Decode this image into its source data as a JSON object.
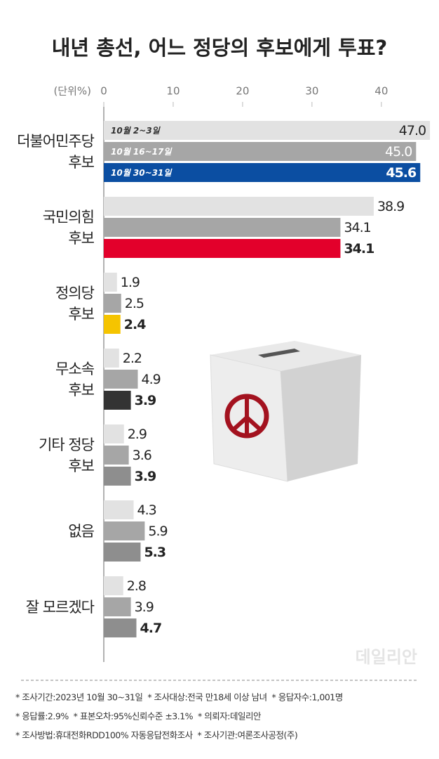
{
  "chart_data": {
    "type": "bar",
    "orientation": "horizontal",
    "title": "내년 총선, 어느 정당의 후보에게 투표?",
    "unit_label": "(단위%)",
    "categories": [
      "더불어민주당\n후보",
      "국민의힘\n후보",
      "정의당\n후보",
      "무소속\n후보",
      "기타 정당\n후보",
      "없음",
      "잘 모르겠다"
    ],
    "series": [
      {
        "name": "10월 2~3일",
        "color": "#e2e2e2",
        "values": [
          47.0,
          38.9,
          1.9,
          2.2,
          2.9,
          4.3,
          2.8
        ],
        "value_labels": [
          "47.0",
          "38.9",
          "1.9",
          "2.2",
          "2.9",
          "4.3",
          "2.8"
        ]
      },
      {
        "name": "10월 16~17일",
        "color": "#a6a6a6",
        "values": [
          45.0,
          34.1,
          2.5,
          4.9,
          3.6,
          5.9,
          3.9
        ],
        "value_labels": [
          "45.0",
          "34.1",
          "2.5",
          "4.9",
          "3.6",
          "5.9",
          "3.9"
        ]
      },
      {
        "name": "10월 30~31일",
        "colors": [
          "#0b4ea2",
          "#e3002b",
          "#f5c400",
          "#333333",
          "#8e8e8e",
          "#8e8e8e",
          "#8e8e8e"
        ],
        "values": [
          45.6,
          34.1,
          2.4,
          3.9,
          3.9,
          5.3,
          4.7
        ],
        "value_labels": [
          "45.6",
          "34.1",
          "2.4",
          "3.9",
          "3.9",
          "5.3",
          "4.7"
        ]
      }
    ],
    "xlim": [
      0,
      48
    ],
    "xticks": [
      0,
      10,
      20,
      30,
      40
    ],
    "watermark": "데일리안",
    "notes": [
      "* 조사기간:2023년 10월 30~31일  * 조사대상:전국 만18세 이상 남녀  * 응답자수:1,001명",
      "* 응답률:2.9%  * 표본오차:95%신뢰수준 ±3.1%  * 의뢰자:데일리안",
      "* 조사방법:휴대전화RDD100% 자동응답전화조사  * 조사기관:여론조사공정(주)"
    ]
  }
}
